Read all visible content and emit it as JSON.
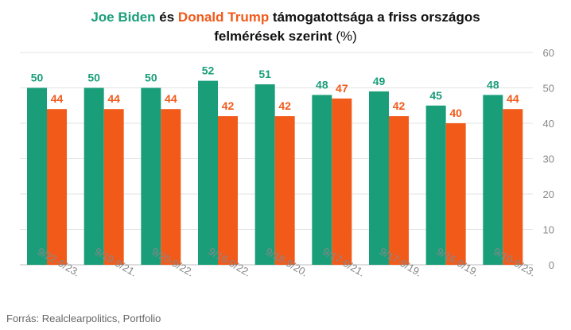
{
  "title": {
    "name1": "Joe Biden",
    "mid1": " és ",
    "name2": "Donald Trump",
    "mid2": " támogatottsága a friss országos",
    "line2": "felmérések szerint",
    "pct": " (%)"
  },
  "source": "Forrás: Realclearpolitics, Portfolio",
  "colors": {
    "biden": "#1a9e7a",
    "trump": "#f25a1a",
    "grid": "#e3e3e3",
    "tick": "#888888"
  },
  "chart_data": {
    "type": "bar",
    "categories": [
      "9/22-9/23.",
      "9/19-9/21.",
      "9/20-9/22.",
      "9/16-9/22.",
      "9/18-9/20.",
      "9/17-9/21.",
      "9/17-9/19.",
      "9/16-9/19.",
      "9/10-9/23."
    ],
    "series": [
      {
        "name": "Joe Biden",
        "values": [
          50,
          50,
          50,
          52,
          51,
          48,
          49,
          45,
          48
        ]
      },
      {
        "name": "Donald Trump",
        "values": [
          44,
          44,
          44,
          42,
          42,
          47,
          42,
          40,
          44
        ]
      }
    ],
    "yticks": [
      0,
      10,
      20,
      30,
      40,
      50,
      60
    ],
    "ylim": [
      0,
      60
    ],
    "grid": true,
    "yaxis_side": "right"
  }
}
